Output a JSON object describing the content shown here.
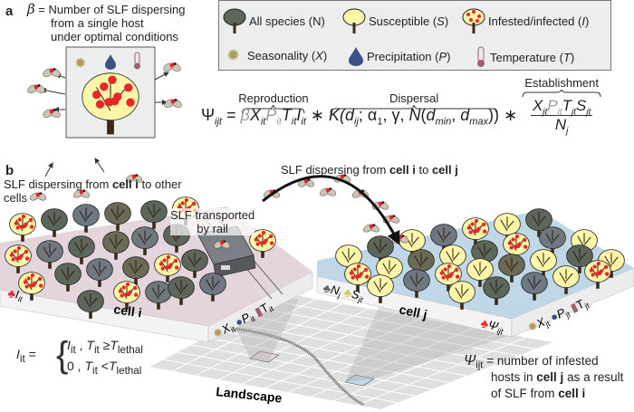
{
  "panel_a": {
    "label": "a",
    "beta_symbol": "β",
    "beta_definition": [
      "= Number of SLF dispersing",
      "from a single host",
      "under optimal conditions"
    ]
  },
  "legend": {
    "items": [
      {
        "label": "All species (",
        "var": "N",
        "close": ")",
        "icon": "tree-dark-icon"
      },
      {
        "label": "Susceptible (",
        "var": "S",
        "close": ")",
        "icon": "tree-susceptible-icon"
      },
      {
        "label": "Infested/infected (",
        "var": "I",
        "close": ")",
        "icon": "tree-infested-icon"
      },
      {
        "label": "Seasonality (",
        "var": "X",
        "close": ")",
        "icon": "sun-icon"
      },
      {
        "label": "Precipitation (",
        "var": "P",
        "close": ")",
        "icon": "water-drop-icon"
      },
      {
        "label": "Temperature (",
        "var": "T",
        "close": ")",
        "icon": "thermometer-icon"
      }
    ]
  },
  "equation": {
    "lhs": "Ψ",
    "lhs_sub": "ijt",
    "equals": "=",
    "reproduction_label": "Reproduction",
    "dispersal_label": "Dispersal",
    "establishment_label": "Establishment",
    "beta": "β",
    "X": "X",
    "P": "P",
    "T": "T",
    "I": "I",
    "it": "it",
    "times": "∗",
    "kernel": "K(",
    "d": "d",
    "ij": "ij",
    "params": "; α",
    "one": "1",
    "gamma": ", γ, ",
    "N": "N",
    "open": "(",
    "dmin_sub": "min",
    "comma": ", ",
    "dmax_sub": "max",
    "close": "))",
    "num_sub": "jt",
    "S": "S",
    "den": "N",
    "den_sub": "j"
  },
  "panel_b": {
    "label": "b",
    "dispersing_other": [
      "SLF dispersing from ",
      "cell i",
      " to other",
      "cells"
    ],
    "dispersing_j": [
      "SLF dispersing from ",
      "cell i",
      " to ",
      "cell j"
    ],
    "rail": [
      "SLF transported",
      "by rail"
    ],
    "cell_i": {
      "name": "cell i",
      "I": "I",
      "I_sub": "it",
      "X": "X",
      "P": "P",
      "T": "T",
      "sub": "it"
    },
    "cell_j": {
      "name": "cell j",
      "N": "N",
      "N_sub": "j",
      "S": "S",
      "S_sub": "jt",
      "psi": "Ψ",
      "psi_sub": "ijt",
      "X": "X",
      "P": "P",
      "T": "T",
      "sub": "jt"
    },
    "lethal": {
      "lhs": "I",
      "lhs_sub": "it",
      "eq": "=",
      "case1": "I",
      "case1_sub": "it",
      "t": "T",
      "t_sub": "it",
      "ge": " ≥",
      "lethal": "lethal",
      "case0": "0",
      "lt": " <"
    },
    "landscape": "Landscape",
    "psi_def": {
      "symbol": "Ψ",
      "sub": "ijt",
      "line1": "= number of infested",
      "line2a": "hosts in ",
      "line2b": "cell j",
      "line2c": " as a result",
      "line3a": "of SLF from ",
      "line3b": "cell i"
    }
  },
  "colors": {
    "tree_dark": "#5d665a",
    "tree_gray": "#6f7880",
    "tree_olive": "#6b6a55",
    "susceptible": "#fdf5a8",
    "infested_dot": "#e8262a",
    "sun": "#b59b5a",
    "drop": "#3c4f86",
    "thermo": "#a0606a",
    "cell_i_top": "#e4d5dd",
    "cell_j_top": "#bfd7e6",
    "legend_bg": "#eceeed"
  }
}
